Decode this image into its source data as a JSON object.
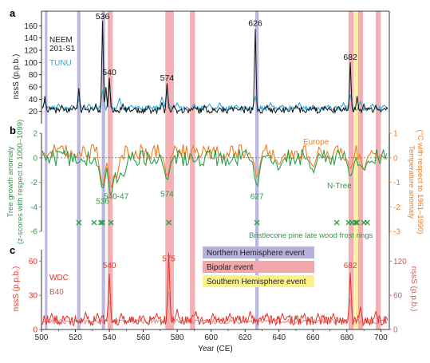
{
  "chart_data": {
    "type": "line",
    "x_axis": {
      "label": "Year (CE)",
      "range": [
        500,
        705
      ],
      "ticks": [
        "500",
        "520",
        "540",
        "560",
        "580",
        "600",
        "620",
        "640",
        "660",
        "680",
        "700"
      ]
    },
    "shading": [
      {
        "kind": "Northern Hemisphere event",
        "color": "#b5b0dc",
        "years": [
          [
            502,
            503.5
          ],
          [
            521,
            523
          ],
          [
            535.5,
            537.5
          ],
          [
            626,
            628
          ]
        ]
      },
      {
        "kind": "Bipolar event",
        "color": "#f2a6ab",
        "years": [
          [
            539,
            542
          ],
          [
            573,
            578
          ],
          [
            587.5,
            590.5
          ],
          [
            681,
            684
          ],
          [
            686.5,
            689.5
          ],
          [
            697,
            700
          ]
        ]
      },
      {
        "kind": "Southern Hemisphere event",
        "color": "#fbf28a",
        "years": [
          [
            684.5,
            686.5
          ]
        ]
      }
    ],
    "panels": [
      {
        "id": "a",
        "ylabel": "nssS (p.p.b.)",
        "ylim": [
          0,
          180
        ],
        "yticks": [
          0,
          20,
          40,
          60,
          80,
          100,
          120,
          140,
          160
        ],
        "series": [
          {
            "name": "NEEM 201-S1",
            "color": "#111111",
            "baseline": 22,
            "peaks": [
              [
                502,
                45
              ],
              [
                507,
                26
              ],
              [
                512,
                30
              ],
              [
                519,
                28
              ],
              [
                522,
                58
              ],
              [
                525,
                30
              ],
              [
                532,
                32
              ],
              [
                536,
                168
              ],
              [
                538,
                60
              ],
              [
                540,
                75
              ],
              [
                548,
                32
              ],
              [
                555,
                26
              ],
              [
                563,
                28
              ],
              [
                571,
                35
              ],
              [
                574,
                66
              ],
              [
                578,
                30
              ],
              [
                590,
                28
              ],
              [
                596,
                30
              ],
              [
                605,
                26
              ],
              [
                611,
                25
              ],
              [
                618,
                28
              ],
              [
                626,
                155
              ],
              [
                633,
                30
              ],
              [
                640,
                26
              ],
              [
                650,
                30
              ],
              [
                660,
                26
              ],
              [
                667,
                28
              ],
              [
                675,
                28
              ],
              [
                682,
                100
              ],
              [
                686,
                45
              ],
              [
                690,
                32
              ],
              [
                697,
                30
              ],
              [
                702,
                25
              ]
            ]
          },
          {
            "name": "TUNU",
            "color": "#29a8de",
            "baseline": 25,
            "peaks": [
              [
                502,
                36
              ],
              [
                510,
                32
              ],
              [
                518,
                30
              ],
              [
                522,
                40
              ],
              [
                528,
                32
              ],
              [
                536,
                55
              ],
              [
                540,
                65
              ],
              [
                546,
                42
              ],
              [
                553,
                30
              ],
              [
                563,
                30
              ],
              [
                571,
                44
              ],
              [
                574,
                56
              ],
              [
                580,
                34
              ],
              [
                590,
                32
              ],
              [
                599,
                32
              ],
              [
                605,
                34
              ],
              [
                615,
                30
              ],
              [
                626,
                45
              ],
              [
                635,
                34
              ],
              [
                642,
                30
              ],
              [
                652,
                34
              ],
              [
                660,
                30
              ],
              [
                669,
                30
              ],
              [
                678,
                34
              ],
              [
                682,
                48
              ],
              [
                688,
                36
              ],
              [
                695,
                32
              ],
              [
                702,
                30
              ]
            ]
          }
        ],
        "annotations": [
          {
            "text": "536",
            "x": 536,
            "y": 168
          },
          {
            "text": "540",
            "x": 540,
            "y": 77
          },
          {
            "text": "574",
            "x": 574,
            "y": 68
          },
          {
            "text": "626",
            "x": 626,
            "y": 157
          },
          {
            "text": "682",
            "x": 682,
            "y": 102
          }
        ]
      },
      {
        "id": "b",
        "ylabel_left": [
          "Tree growth anomaly",
          "(z-scores with respect to 1000–1099)"
        ],
        "ylabel_right": [
          "Temperature anomaly",
          "(°C with respect to 1961–1990)"
        ],
        "ylim": [
          -6,
          2
        ],
        "yticks_left": [
          -6,
          -4,
          -2,
          0,
          2
        ],
        "yticks_right": [
          1,
          0,
          -1,
          -2,
          -3
        ],
        "series": [
          {
            "name": "Europe",
            "color": "#ef7d22",
            "baseline": 0.45,
            "dips": [
              [
                536,
                -2.6
              ],
              [
                541,
                -2.8
              ],
              [
                544,
                -2.0
              ],
              [
                574,
                -1.6
              ],
              [
                627,
                -1.8
              ],
              [
                640,
                -0.8
              ],
              [
                660,
                -0.9
              ],
              [
                682,
                -1.2
              ],
              [
                690,
                -1.0
              ]
            ]
          },
          {
            "name": "N-Tree",
            "color": "#2b9d48",
            "baseline": 0.0,
            "dips": [
              [
                536,
                -3.0
              ],
              [
                541,
                -3.4
              ],
              [
                545,
                -2.2
              ],
              [
                548,
                -1.8
              ],
              [
                574,
                -1.9
              ],
              [
                627,
                -2.6
              ],
              [
                640,
                -1.2
              ],
              [
                660,
                -1.3
              ],
              [
                682,
                -1.6
              ],
              [
                690,
                -1.2
              ]
            ]
          }
        ],
        "annotations": [
          {
            "text": "536",
            "x": 536,
            "y": -3.5
          },
          {
            "text": "540-47",
            "x": 544,
            "y": -3.1
          },
          {
            "text": "574",
            "x": 574,
            "y": -2.9
          },
          {
            "text": "627",
            "x": 627,
            "y": -3.1
          }
        ],
        "frost_rings": {
          "label": "Bristlecone pine late wood frost rings",
          "years": [
            522,
            531,
            535,
            536,
            541,
            575,
            627,
            674,
            681,
            683,
            685,
            686,
            690,
            692
          ],
          "color": "#2b9d48"
        }
      },
      {
        "id": "c",
        "ylabel": "nssS (p.p.b.)",
        "ylabel_right": "nssS (p.p.b.)",
        "ylim": [
          0,
          70
        ],
        "yticks": [
          0,
          30,
          60
        ],
        "yticks_right": [
          0,
          60,
          120
        ],
        "series": [
          {
            "name": "WDC",
            "color": "#e3352a",
            "baseline": 8,
            "peaks": [
              [
                506,
                14
              ],
              [
                515,
                12
              ],
              [
                526,
                15
              ],
              [
                533,
                14
              ],
              [
                540,
                49
              ],
              [
                547,
                14
              ],
              [
                560,
                12
              ],
              [
                568,
                14
              ],
              [
                575,
                67
              ],
              [
                580,
                18
              ],
              [
                591,
                16
              ],
              [
                601,
                14
              ],
              [
                611,
                14
              ],
              [
                623,
                16
              ],
              [
                633,
                14
              ],
              [
                642,
                14
              ],
              [
                655,
                14
              ],
              [
                663,
                14
              ],
              [
                672,
                14
              ],
              [
                682,
                50
              ],
              [
                688,
                20
              ],
              [
                697,
                16
              ]
            ]
          },
          {
            "name": "B40",
            "color": "#d98c8c",
            "baseline": 7,
            "peaks": [
              [
                575,
                40
              ],
              [
                540,
                30
              ],
              [
                682,
                30
              ]
            ]
          }
        ],
        "annotations": [
          {
            "text": "540",
            "x": 540,
            "y": 54
          },
          {
            "text": "575",
            "x": 575,
            "y": 60
          },
          {
            "text": "682",
            "x": 682,
            "y": 54
          }
        ]
      }
    ],
    "legend": {
      "entries": [
        {
          "label": "Northern Hemisphere event",
          "color": "#b5b0dc"
        },
        {
          "label": "Bipolar event",
          "color": "#f2a6ab"
        },
        {
          "label": "Southern Hemisphere event",
          "color": "#fbf28a"
        }
      ]
    },
    "panel_letters": [
      "a",
      "b",
      "c"
    ]
  },
  "labels": {
    "neem": "NEEM",
    "neem2": "201-S1",
    "tunu": "TUNU",
    "europe": "Europe",
    "ntree": "N-Tree",
    "wdc": "WDC",
    "b40": "B40",
    "frost": "Bristlecone pine late wood frost rings",
    "xlabel": "Year (CE)",
    "a_ylabel": "nssS (p.p.b.)",
    "c_ylabel": "nssS (p.p.b.)",
    "c_ylabel_right": "nssS (p.p.b.)",
    "b_ylabel_l1": "Tree growth anomaly",
    "b_ylabel_l2": "(z-scores with respect to 1000–1099)",
    "b_ylabel_r1": "Temperature anomaly",
    "b_ylabel_r2": "(°C with respect to 1961–1990)"
  }
}
